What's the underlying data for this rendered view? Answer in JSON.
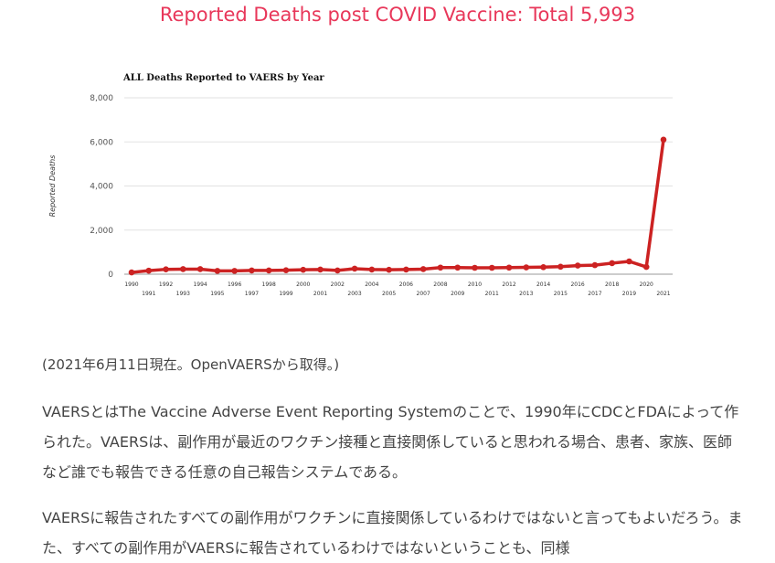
{
  "article": {
    "headline": "Reported Deaths post COVID Vaccine: Total 5,993",
    "caption": "(2021年6月11日現在。OpenVAERSから取得。)",
    "paragraphs": [
      "VAERSとはThe Vaccine Adverse Event Reporting Systemのことで、1990年にCDCとFDAによって作られた。VAERSは、副作用が最近のワクチン接種と直接関係していると思われる場合、患者、家族、医師など誰でも報告できる任意の自己報告システムである。",
      "VAERSに報告されたすべての副作用がワクチンに直接関係しているわけではないと言ってもよいだろう。また、すべての副作用がVAERSに報告されているわけではないということも、同様"
    ]
  },
  "chart_data": {
    "type": "line",
    "title": "ALL Deaths Reported to VAERS by Year",
    "ylabel": "Reported Deaths",
    "xlabel": "",
    "ylim": [
      0,
      8000
    ],
    "yticks": [
      "0",
      "2,000",
      "4,000",
      "6,000",
      "8,000"
    ],
    "grid": true,
    "line_color": "#cc2222",
    "categories": [
      "1990",
      "1991",
      "1992",
      "1993",
      "1994",
      "1995",
      "1996",
      "1997",
      "1998",
      "1999",
      "2000",
      "2001",
      "2002",
      "2003",
      "2004",
      "2005",
      "2006",
      "2007",
      "2008",
      "2009",
      "2010",
      "2011",
      "2012",
      "2013",
      "2014",
      "2015",
      "2016",
      "2017",
      "2018",
      "2019",
      "2020",
      "2021"
    ],
    "series": [
      {
        "values": [
          80,
          160,
          220,
          230,
          230,
          150,
          150,
          170,
          170,
          180,
          200,
          210,
          170,
          250,
          210,
          200,
          210,
          230,
          300,
          300,
          290,
          290,
          300,
          310,
          320,
          340,
          390,
          410,
          500,
          580,
          330,
          6100
        ]
      }
    ]
  }
}
